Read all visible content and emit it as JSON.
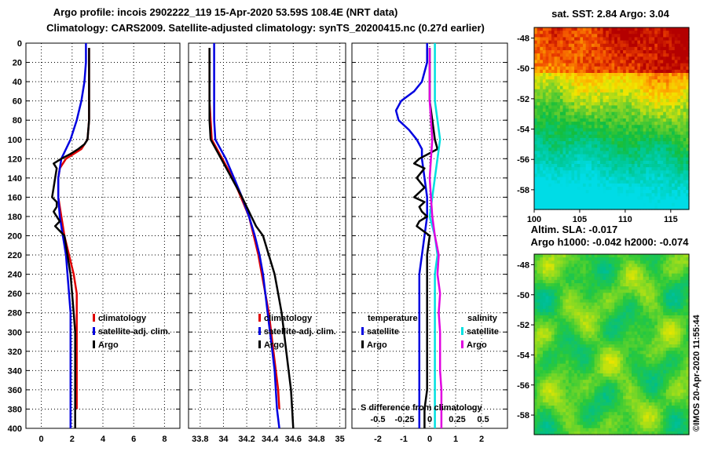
{
  "title_line1": "Argo profile: incois 2902222_119 15-Apr-2020 53.59S 108.4E (NRT data)",
  "title_line2": "Climatology: CARS2009. Satellite-adjusted climatology: synTS_20200415.nc (0.27d earlier)",
  "map_top_title": "sat. SST: 2.84 Argo: 3.04",
  "map_bottom_title1": "Altim. SLA: -0.017",
  "map_bottom_title2": "Argo h1000: -0.042 h2000: -0.074",
  "credit": "©IMOS 20-Apr-2020 11:55:44",
  "colors": {
    "climatology": "#e00000",
    "satellite": "#0000e0",
    "argo": "#000000",
    "sal_satellite": "#00e0e0",
    "sal_argo": "#e000e0"
  },
  "depth_ticks": [
    "0",
    "20",
    "40",
    "60",
    "80",
    "100",
    "120",
    "140",
    "160",
    "180",
    "200",
    "220",
    "240",
    "260",
    "280",
    "300",
    "320",
    "340",
    "360",
    "380",
    "400"
  ],
  "map_lat_ticks": [
    "-48",
    "-50",
    "-52",
    "-54",
    "-56",
    "-58"
  ],
  "map_lon_ticks": [
    "100",
    "105",
    "110",
    "115"
  ],
  "chart_data": [
    {
      "type": "line",
      "panel": "temperature",
      "xlim": [
        -1,
        9
      ],
      "ylim": [
        0,
        400
      ],
      "xticks": [
        "0",
        "2",
        "4",
        "6",
        "8"
      ],
      "legend": [
        "climatology",
        "satellite-adj. clim.",
        "Argo"
      ],
      "series": [
        {
          "name": "climatology",
          "color": "#e00000",
          "depth": [
            5,
            20,
            40,
            60,
            80,
            100,
            110,
            115,
            120,
            130,
            140,
            160,
            180,
            200,
            220,
            240,
            260,
            280,
            300,
            320,
            340,
            360,
            380
          ],
          "value": [
            3.1,
            3.1,
            3.1,
            3.1,
            3.1,
            3.0,
            2.6,
            2.1,
            1.6,
            1.2,
            1.1,
            1.1,
            1.3,
            1.5,
            1.8,
            2.1,
            2.3,
            2.3,
            2.3,
            2.3,
            2.3,
            2.3,
            2.3
          ]
        },
        {
          "name": "satellite-adj. clim.",
          "color": "#0000e0",
          "depth": [
            0,
            20,
            40,
            60,
            80,
            100,
            110,
            120,
            140,
            160,
            180,
            200,
            220,
            240,
            260,
            280,
            300,
            320,
            340,
            360,
            400
          ],
          "value": [
            2.9,
            2.9,
            2.8,
            2.6,
            2.3,
            1.9,
            1.6,
            1.3,
            1.1,
            1.1,
            1.2,
            1.4,
            1.6,
            1.7,
            1.8,
            1.9,
            1.9,
            1.9,
            1.9,
            1.9,
            1.9
          ]
        },
        {
          "name": "Argo",
          "color": "#000000",
          "depth": [
            5,
            20,
            40,
            60,
            80,
            100,
            105,
            110,
            115,
            120,
            125,
            130,
            140,
            150,
            160,
            165,
            170,
            175,
            180,
            185,
            190,
            200,
            220,
            240,
            260,
            280,
            300,
            320,
            340,
            360,
            380,
            400
          ],
          "value": [
            3.1,
            3.1,
            3.1,
            3.1,
            3.1,
            3.0,
            2.8,
            2.4,
            1.9,
            1.3,
            0.8,
            1.0,
            0.9,
            0.8,
            0.7,
            1.0,
            1.0,
            0.8,
            1.0,
            1.2,
            0.9,
            1.5,
            1.7,
            1.9,
            2.0,
            2.1,
            2.2,
            2.2,
            2.2,
            2.2,
            2.2,
            2.2
          ]
        }
      ]
    },
    {
      "type": "line",
      "panel": "salinity",
      "xlim": [
        33.7,
        35.05
      ],
      "ylim": [
        0,
        400
      ],
      "xticks": [
        "33.8",
        "34",
        "34.2",
        "34.4",
        "34.6",
        "34.8",
        "35"
      ],
      "legend": [
        "climatology",
        "satellite-adj. clim.",
        "Argo"
      ],
      "series": [
        {
          "name": "climatology",
          "color": "#e00000",
          "depth": [
            5,
            20,
            40,
            60,
            80,
            100,
            120,
            140,
            160,
            180,
            200,
            220,
            240,
            260,
            280,
            300,
            320,
            340,
            360,
            380
          ],
          "value": [
            33.88,
            33.88,
            33.88,
            33.88,
            33.89,
            33.9,
            33.99,
            34.08,
            34.15,
            34.22,
            34.26,
            34.3,
            34.33,
            34.36,
            34.39,
            34.41,
            34.43,
            34.45,
            34.47,
            34.48
          ]
        },
        {
          "name": "satellite-adj. clim.",
          "color": "#0000e0",
          "depth": [
            0,
            20,
            40,
            60,
            80,
            100,
            120,
            140,
            160,
            180,
            200,
            220,
            240,
            260,
            280,
            300,
            320,
            340,
            360,
            380,
            400
          ],
          "value": [
            33.92,
            33.92,
            33.92,
            33.92,
            33.92,
            33.93,
            34.02,
            34.09,
            34.16,
            34.22,
            34.27,
            34.31,
            34.34,
            34.36,
            34.38,
            34.4,
            34.42,
            34.44,
            34.45,
            34.46,
            34.48
          ]
        },
        {
          "name": "Argo",
          "color": "#000000",
          "depth": [
            5,
            20,
            40,
            60,
            80,
            100,
            120,
            140,
            160,
            180,
            190,
            200,
            220,
            240,
            260,
            280,
            300,
            320,
            340,
            360,
            380,
            400
          ],
          "value": [
            33.88,
            33.88,
            33.88,
            33.88,
            33.88,
            33.89,
            33.98,
            34.07,
            34.16,
            34.24,
            34.28,
            34.34,
            34.39,
            34.44,
            34.47,
            34.5,
            34.52,
            34.54,
            34.56,
            34.58,
            34.59,
            34.6
          ]
        }
      ]
    },
    {
      "type": "line",
      "panel": "difference from climatology",
      "xlim": [
        -3,
        3
      ],
      "ylim": [
        0,
        400
      ],
      "xticks": [
        "-2",
        "-1",
        "0",
        "1",
        "2"
      ],
      "bottom_label": "S difference from climatology",
      "bottom_ticks": [
        "-0.5",
        "-0.25",
        "0",
        "0.25",
        "0.5"
      ],
      "legend_temperature": [
        "temperature",
        "satellite",
        "Argo"
      ],
      "legend_salinity": [
        "salinity",
        "satellite",
        "Argo"
      ],
      "series": [
        {
          "name": "temperature satellite",
          "color": "#0000e0",
          "depth": [
            0,
            20,
            40,
            50,
            60,
            70,
            80,
            90,
            100,
            110,
            120,
            140,
            160,
            180,
            200,
            220,
            240,
            260,
            280,
            300,
            320,
            340,
            360,
            380,
            400
          ],
          "value": [
            -0.1,
            -0.1,
            -0.3,
            -0.6,
            -1.1,
            -1.3,
            -1.2,
            -0.8,
            -0.5,
            -0.3,
            -0.3,
            -0.2,
            -0.1,
            -0.1,
            -0.2,
            -0.3,
            -0.4,
            -0.4,
            -0.4,
            -0.4,
            -0.4,
            -0.4,
            -0.4,
            -0.4,
            -0.4
          ]
        },
        {
          "name": "temperature Argo",
          "color": "#000000",
          "depth": [
            5,
            20,
            40,
            60,
            80,
            100,
            110,
            120,
            125,
            130,
            140,
            150,
            160,
            165,
            170,
            175,
            180,
            185,
            190,
            200,
            220,
            240,
            260,
            280,
            300,
            320,
            340,
            360,
            380,
            400
          ],
          "value": [
            0.0,
            0.0,
            0.0,
            0.0,
            0.1,
            0.2,
            0.3,
            -0.4,
            -0.6,
            -0.2,
            -0.5,
            -0.2,
            -0.6,
            -0.2,
            -0.4,
            -0.3,
            -0.1,
            -0.4,
            -0.5,
            0.0,
            -0.1,
            -0.1,
            -0.1,
            -0.1,
            -0.1,
            -0.1,
            -0.1,
            -0.1,
            -0.2,
            -0.2
          ]
        },
        {
          "name": "salinity satellite",
          "color": "#00e0e0",
          "depth": [
            0,
            20,
            40,
            60,
            80,
            100,
            120,
            140,
            160,
            180,
            200,
            220,
            240,
            260,
            280,
            300,
            320,
            340,
            360,
            380,
            400
          ],
          "value": [
            0.2,
            0.2,
            0.2,
            0.2,
            0.3,
            0.4,
            0.3,
            0.2,
            0.1,
            0.0,
            0.2,
            0.3,
            0.2,
            0.2,
            0.2,
            0.2,
            0.2,
            0.2,
            0.2,
            0.2,
            0.2
          ]
        },
        {
          "name": "salinity Argo",
          "color": "#e000e0",
          "depth": [
            5,
            20,
            40,
            60,
            80,
            100,
            120,
            140,
            160,
            180,
            200,
            220,
            240,
            260,
            280,
            300,
            320,
            340,
            360,
            380,
            400
          ],
          "value": [
            0.0,
            0.0,
            0.0,
            0.0,
            0.05,
            0.1,
            0.05,
            0.0,
            0.05,
            0.1,
            0.2,
            0.35,
            0.3,
            0.4,
            0.35,
            0.4,
            0.4,
            0.4,
            0.45,
            0.45,
            0.45
          ]
        }
      ]
    },
    {
      "type": "heatmap",
      "panel": "satellite SST map",
      "title": "sat. SST: 2.84 Argo: 3.04",
      "xlim": [
        100,
        117
      ],
      "ylim": [
        -59.3,
        -47.3
      ],
      "field": "SST"
    },
    {
      "type": "heatmap",
      "panel": "altimetry SLA map",
      "title": "Altim. SLA: -0.017",
      "xlim": [
        100,
        117
      ],
      "ylim": [
        -59.3,
        -47.3
      ],
      "field": "SLA"
    }
  ]
}
